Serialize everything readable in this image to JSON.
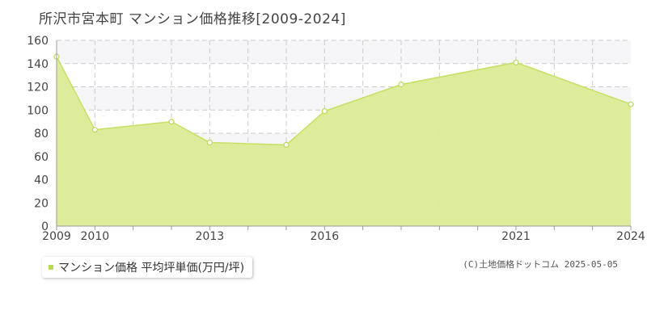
{
  "title": "所沢市宮本町 マンション価格推移[2009-2024]",
  "legend": {
    "label": "マンション価格 平均坪単価(万円/坪)"
  },
  "copyright": "(C)土地価格ドットコム 2025-05-05",
  "colors": {
    "fill": "#dbeb95",
    "line": "#c5e064",
    "marker": "#b9d95a",
    "band": "#f6f6f8"
  },
  "chart_data": {
    "type": "area",
    "title": "所沢市宮本町 マンション価格推移[2009-2024]",
    "xlabel": "",
    "ylabel": "",
    "x": [
      2009,
      2010,
      2011,
      2012,
      2013,
      2014,
      2015,
      2016,
      2017,
      2018,
      2019,
      2020,
      2021,
      2022,
      2023,
      2024
    ],
    "x_tick_labels": [
      "2009",
      "2010",
      "2013",
      "2016",
      "2021",
      "2024"
    ],
    "xlim": [
      2009,
      2024
    ],
    "ylim": [
      0,
      160
    ],
    "y_ticks": [
      0,
      20,
      40,
      60,
      80,
      100,
      120,
      140,
      160
    ],
    "grid": true,
    "series": [
      {
        "name": "マンション価格 平均坪単価(万円/坪)",
        "points": [
          {
            "x": 2009,
            "y": 146
          },
          {
            "x": 2010,
            "y": 83
          },
          {
            "x": 2012,
            "y": 90
          },
          {
            "x": 2013,
            "y": 72
          },
          {
            "x": 2015,
            "y": 70
          },
          {
            "x": 2016,
            "y": 99
          },
          {
            "x": 2018,
            "y": 122
          },
          {
            "x": 2021,
            "y": 141
          },
          {
            "x": 2024,
            "y": 105
          }
        ]
      }
    ]
  }
}
